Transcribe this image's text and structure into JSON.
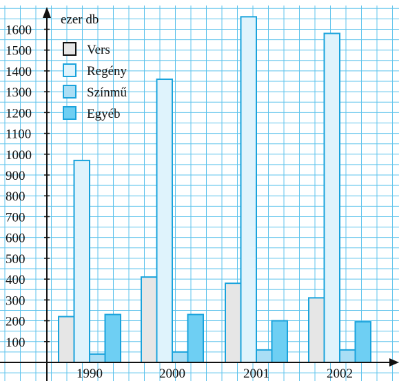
{
  "chart_data": {
    "type": "bar",
    "ylabel": "ezer db",
    "categories": [
      "1990",
      "2000",
      "2001",
      "2002"
    ],
    "series": [
      {
        "name": "Vers",
        "values": [
          220,
          410,
          380,
          310
        ],
        "color": "#e6e6e6"
      },
      {
        "name": "Regény",
        "values": [
          970,
          1360,
          1660,
          1580
        ],
        "color": "#dff3fc"
      },
      {
        "name": "Színmű",
        "values": [
          40,
          50,
          60,
          60
        ],
        "color": "#a9def5"
      },
      {
        "name": "Egyéb",
        "values": [
          230,
          230,
          200,
          195
        ],
        "color": "#6ecff3"
      }
    ],
    "ylim": [
      0,
      1600
    ],
    "yticks": [
      100,
      200,
      300,
      400,
      500,
      600,
      700,
      800,
      900,
      1000,
      1100,
      1200,
      1300,
      1400,
      1500,
      1600
    ],
    "grid": true,
    "legend_position": "top-left",
    "colors": {
      "grid": "#5ec3ec",
      "bar_stroke": "#1aa3dc",
      "axis": "#111111"
    }
  }
}
